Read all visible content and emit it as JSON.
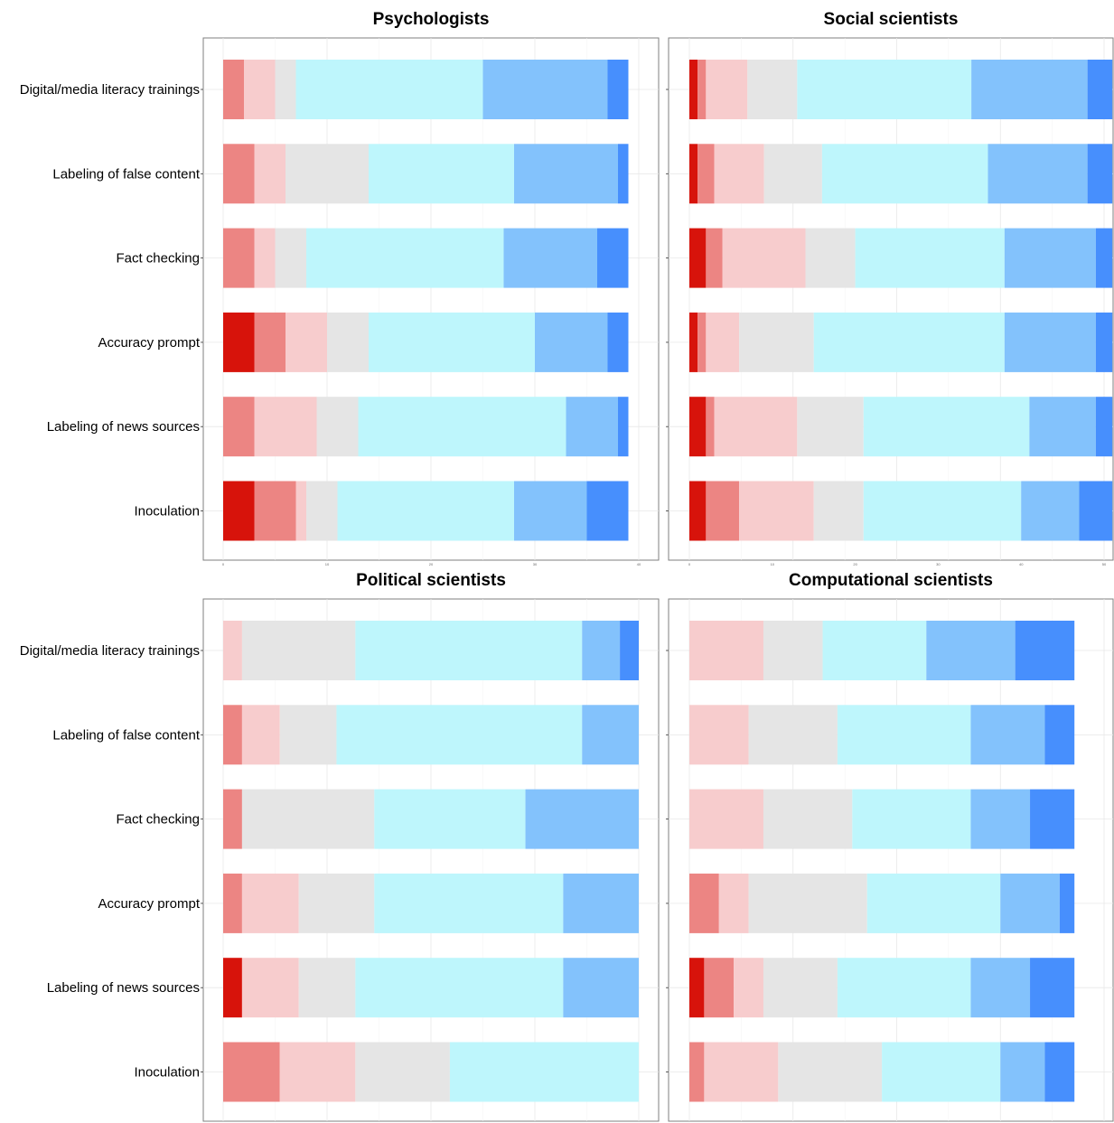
{
  "palette": [
    "#D7130B",
    "#EC8583",
    "#F7CCCD",
    "#E5E5E5",
    "#BEF6FC",
    "#83C2FC",
    "#478FFD"
  ],
  "chart_data": [
    {
      "type": "bar",
      "stacked": true,
      "orientation": "horizontal",
      "title": "Psychologists",
      "categories": [
        "Digital/media literacy trainings",
        "Labeling of false content",
        "Fact checking",
        "Accuracy prompt",
        "Labeling of news sources",
        "Inoculation"
      ],
      "xlim": [
        0,
        40
      ],
      "ticks": [
        0,
        10,
        20,
        30,
        40
      ],
      "segments": [
        [
          0,
          2,
          3,
          2,
          18,
          12,
          2
        ],
        [
          0,
          3,
          3,
          8,
          14,
          10,
          1
        ],
        [
          0,
          3,
          2,
          3,
          19,
          9,
          3
        ],
        [
          3,
          3,
          4,
          4,
          16,
          7,
          2
        ],
        [
          0,
          3,
          6,
          4,
          20,
          5,
          1
        ],
        [
          3,
          4,
          1,
          3,
          17,
          7,
          4
        ]
      ]
    },
    {
      "type": "bar",
      "stacked": true,
      "orientation": "horizontal",
      "title": "Social scientists",
      "categories": [
        "Digital/media literacy trainings",
        "Labeling of false content",
        "Fact checking",
        "Accuracy prompt",
        "Labeling of news sources",
        "Inoculation"
      ],
      "xlim": [
        0,
        50
      ],
      "ticks": [
        0,
        10,
        20,
        30,
        40,
        50
      ],
      "segments": [
        [
          1,
          1,
          5,
          6,
          21,
          14,
          3
        ],
        [
          1,
          2,
          6,
          7,
          20,
          12,
          3
        ],
        [
          2,
          2,
          10,
          6,
          18,
          11,
          2
        ],
        [
          1,
          1,
          4,
          9,
          23,
          11,
          2
        ],
        [
          2,
          1,
          10,
          8,
          20,
          8,
          2
        ],
        [
          2,
          4,
          9,
          6,
          19,
          7,
          4
        ]
      ]
    },
    {
      "type": "bar",
      "stacked": true,
      "orientation": "horizontal",
      "title": "Political scientists",
      "categories": [
        "Digital/media literacy trainings",
        "Labeling of false content",
        "Fact checking",
        "Accuracy prompt",
        "Labeling of news sources",
        "Inoculation"
      ],
      "xlim": [
        0,
        22
      ],
      "ticks": [],
      "segments": [
        [
          0,
          0,
          1,
          6,
          12,
          2,
          1
        ],
        [
          0,
          1,
          2,
          3,
          13,
          3,
          0
        ],
        [
          0,
          1,
          0,
          7,
          8,
          6,
          0
        ],
        [
          0,
          1,
          3,
          4,
          10,
          4,
          0
        ],
        [
          1,
          0,
          3,
          3,
          11,
          4,
          0
        ],
        [
          0,
          3,
          4,
          5,
          10,
          0,
          0
        ]
      ]
    },
    {
      "type": "bar",
      "stacked": true,
      "orientation": "horizontal",
      "title": "Computational scientists",
      "categories": [
        "Digital/media literacy trainings",
        "Labeling of false content",
        "Fact checking",
        "Accuracy prompt",
        "Labeling of news sources",
        "Inoculation"
      ],
      "xlim": [
        0,
        28
      ],
      "ticks": [],
      "segments": [
        [
          0,
          0,
          5,
          4,
          7,
          6,
          4
        ],
        [
          0,
          0,
          4,
          6,
          9,
          5,
          2
        ],
        [
          0,
          0,
          5,
          6,
          8,
          4,
          3
        ],
        [
          0,
          2,
          2,
          8,
          9,
          4,
          1
        ],
        [
          1,
          2,
          2,
          5,
          9,
          4,
          3
        ],
        [
          0,
          1,
          5,
          7,
          8,
          3,
          2
        ]
      ]
    }
  ]
}
